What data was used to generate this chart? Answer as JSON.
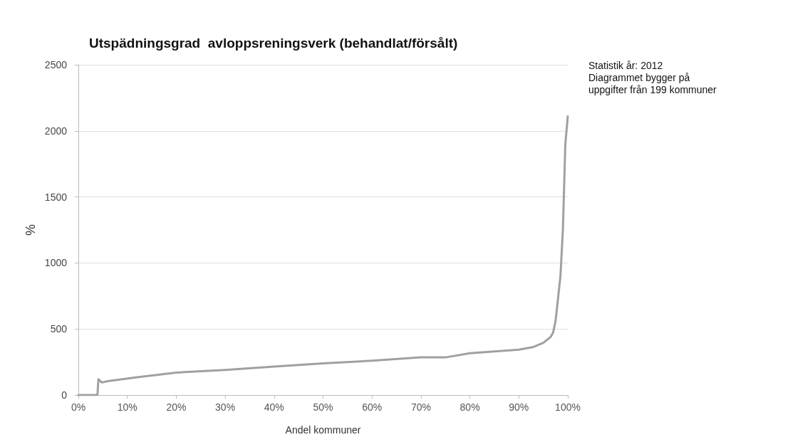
{
  "chart_data": {
    "type": "line",
    "title": "Utspädningsgrad  avloppsreningsverk (behandlat/försålt)",
    "xlabel": "Andel kommuner",
    "ylabel": "%",
    "annotations": [
      "Statistik år: 2012",
      "Diagrammet bygger på uppgifter från 199 kommuner"
    ],
    "x": [
      0,
      3.9,
      4.1,
      4.8,
      6,
      12,
      20,
      30,
      40,
      50,
      60,
      70,
      75,
      80,
      90,
      93,
      95,
      96.5,
      97,
      97.5,
      98,
      98.5,
      99,
      99.5,
      100
    ],
    "series": [
      {
        "color": "#a0a0a0",
        "values": [
          0,
          0,
          120,
          95,
          105,
          135,
          170,
          190,
          215,
          240,
          260,
          285,
          285,
          317,
          343,
          364,
          395,
          440,
          473,
          560,
          730,
          900,
          1250,
          1900,
          2110
        ]
      }
    ],
    "xlim": [
      0,
      100
    ],
    "xticks": [
      {
        "value": 0,
        "label": "0%"
      },
      {
        "value": 10,
        "label": "10%"
      },
      {
        "value": 20,
        "label": "20%"
      },
      {
        "value": 30,
        "label": "30%"
      },
      {
        "value": 40,
        "label": "40%"
      },
      {
        "value": 50,
        "label": "50%"
      },
      {
        "value": 60,
        "label": "60%"
      },
      {
        "value": 70,
        "label": "70%"
      },
      {
        "value": 80,
        "label": "80%"
      },
      {
        "value": 90,
        "label": "90%"
      },
      {
        "value": 100,
        "label": "100%"
      }
    ],
    "ylim": [
      0,
      2500
    ],
    "yticks": [
      0,
      500,
      1000,
      1500,
      2000,
      2500
    ],
    "grid": "y",
    "marker": "none",
    "line_style": "solid"
  }
}
